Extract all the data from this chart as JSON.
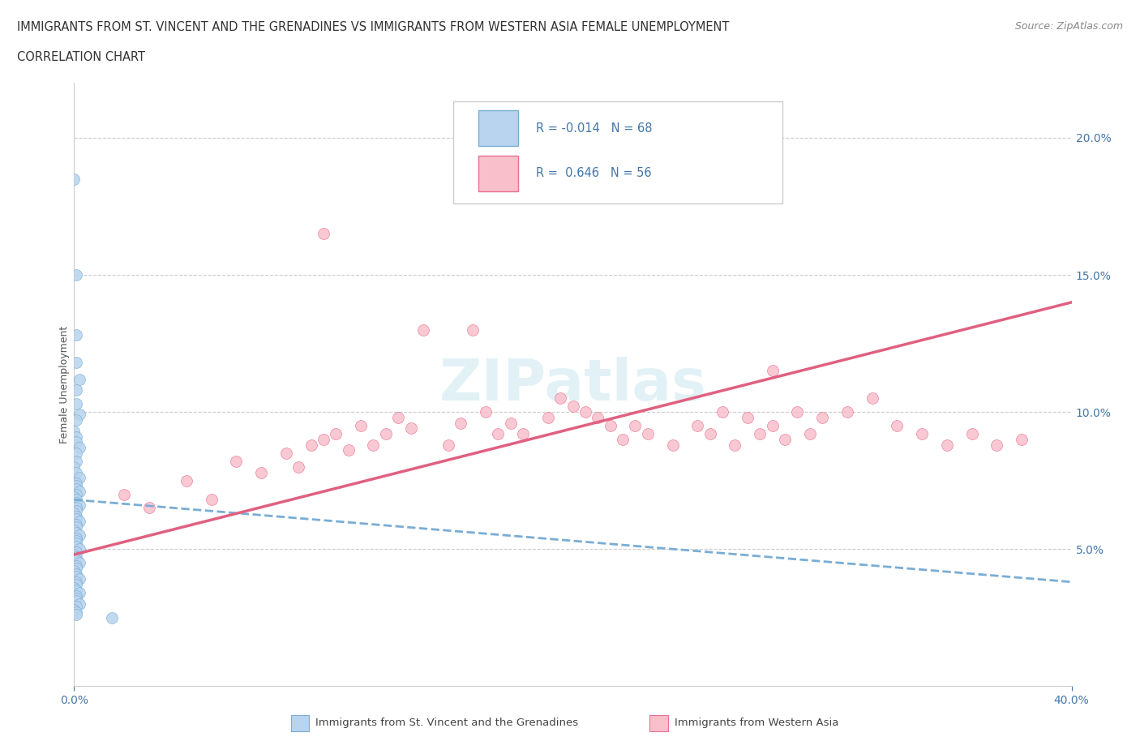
{
  "title_line1": "IMMIGRANTS FROM ST. VINCENT AND THE GRENADINES VS IMMIGRANTS FROM WESTERN ASIA FEMALE UNEMPLOYMENT",
  "title_line2": "CORRELATION CHART",
  "source": "Source: ZipAtlas.com",
  "ylabel": "Female Unemployment",
  "R1": -0.014,
  "N1": 68,
  "R2": 0.646,
  "N2": 56,
  "color_blue_fill": "#b8d4ee",
  "color_blue_edge": "#7aadd4",
  "color_pink_fill": "#f9c0cc",
  "color_pink_edge": "#e87090",
  "color_blue_line": "#7aadd4",
  "color_pink_line": "#e06080",
  "color_text_blue": "#4477aa",
  "color_grid": "#cccccc",
  "legend_label1": "Immigrants from St. Vincent and the Grenadines",
  "legend_label2": "Immigrants from Western Asia",
  "watermark_text": "ZIPatlas",
  "xlim": [
    0.0,
    0.4
  ],
  "ylim": [
    0.0,
    0.22
  ],
  "right_yticks": [
    0.05,
    0.1,
    0.15,
    0.2
  ],
  "right_ytick_labels": [
    "5.0%",
    "10.0%",
    "15.0%",
    "20.0%"
  ],
  "blue_trend_x0": 0.0,
  "blue_trend_y0": 0.068,
  "blue_trend_x1": 0.4,
  "blue_trend_y1": 0.038,
  "pink_trend_x0": 0.0,
  "pink_trend_y0": 0.048,
  "pink_trend_x1": 0.4,
  "pink_trend_y1": 0.14,
  "blue_x": [
    0.0,
    0.001,
    0.001,
    0.001,
    0.002,
    0.001,
    0.001,
    0.002,
    0.001,
    0.0,
    0.001,
    0.001,
    0.002,
    0.001,
    0.001,
    0.0,
    0.001,
    0.002,
    0.001,
    0.001,
    0.001,
    0.002,
    0.001,
    0.0,
    0.001,
    0.001,
    0.002,
    0.001,
    0.001,
    0.0,
    0.001,
    0.001,
    0.002,
    0.001,
    0.001,
    0.0,
    0.001,
    0.002,
    0.001,
    0.001,
    0.001,
    0.001,
    0.002,
    0.001,
    0.0,
    0.001,
    0.001,
    0.002,
    0.001,
    0.001,
    0.0,
    0.001,
    0.001,
    0.002,
    0.001,
    0.001,
    0.0,
    0.001,
    0.002,
    0.001,
    0.001,
    0.001,
    0.002,
    0.001,
    0.0,
    0.001,
    0.001,
    0.015
  ],
  "blue_y": [
    0.185,
    0.15,
    0.128,
    0.118,
    0.112,
    0.108,
    0.103,
    0.099,
    0.097,
    0.093,
    0.091,
    0.089,
    0.087,
    0.085,
    0.082,
    0.08,
    0.078,
    0.076,
    0.074,
    0.073,
    0.072,
    0.071,
    0.07,
    0.069,
    0.068,
    0.067,
    0.066,
    0.065,
    0.064,
    0.063,
    0.062,
    0.061,
    0.06,
    0.059,
    0.058,
    0.057,
    0.056,
    0.055,
    0.054,
    0.053,
    0.052,
    0.051,
    0.05,
    0.049,
    0.048,
    0.047,
    0.046,
    0.045,
    0.044,
    0.043,
    0.042,
    0.041,
    0.04,
    0.039,
    0.038,
    0.037,
    0.036,
    0.035,
    0.034,
    0.033,
    0.032,
    0.031,
    0.03,
    0.029,
    0.028,
    0.027,
    0.026,
    0.025
  ],
  "pink_x": [
    0.02,
    0.03,
    0.045,
    0.055,
    0.065,
    0.075,
    0.085,
    0.09,
    0.095,
    0.1,
    0.105,
    0.11,
    0.115,
    0.12,
    0.125,
    0.13,
    0.135,
    0.14,
    0.15,
    0.155,
    0.16,
    0.165,
    0.17,
    0.175,
    0.18,
    0.19,
    0.195,
    0.2,
    0.205,
    0.21,
    0.215,
    0.22,
    0.225,
    0.23,
    0.24,
    0.25,
    0.255,
    0.26,
    0.265,
    0.27,
    0.275,
    0.28,
    0.285,
    0.29,
    0.295,
    0.3,
    0.31,
    0.32,
    0.33,
    0.34,
    0.35,
    0.36,
    0.37,
    0.38,
    0.1,
    0.28
  ],
  "pink_y": [
    0.07,
    0.065,
    0.075,
    0.068,
    0.082,
    0.078,
    0.085,
    0.08,
    0.088,
    0.09,
    0.092,
    0.086,
    0.095,
    0.088,
    0.092,
    0.098,
    0.094,
    0.13,
    0.088,
    0.096,
    0.13,
    0.1,
    0.092,
    0.096,
    0.092,
    0.098,
    0.105,
    0.102,
    0.1,
    0.098,
    0.095,
    0.09,
    0.095,
    0.092,
    0.088,
    0.095,
    0.092,
    0.1,
    0.088,
    0.098,
    0.092,
    0.095,
    0.09,
    0.1,
    0.092,
    0.098,
    0.1,
    0.105,
    0.095,
    0.092,
    0.088,
    0.092,
    0.088,
    0.09,
    0.165,
    0.115
  ]
}
